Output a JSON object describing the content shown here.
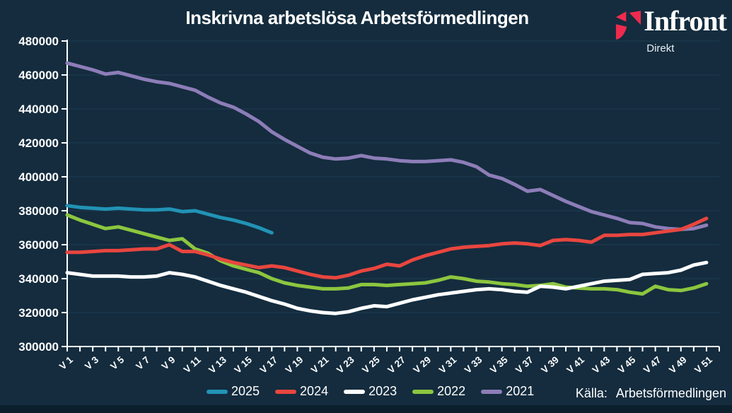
{
  "title": "Inskrivna arbetslösa Arbetsförmedlingen",
  "logo": {
    "name": "Infront",
    "sub": "Direkt",
    "mark_color": "#ee2b4e"
  },
  "source": {
    "label": "Källa:",
    "value": "Arbetsförmedlingen"
  },
  "colors": {
    "background": "#142c3e",
    "bottom_strip": "#0b1f2d",
    "grid": "#1e3c52",
    "axis": "#ffffff",
    "text": "#ffffff"
  },
  "chart_data": {
    "type": "line",
    "title": "Inskrivna arbetslösa Arbetsförmedlingen",
    "x_unit": "week",
    "weeks": 52,
    "x_labels": [
      "V 1",
      "V 3",
      "V 5",
      "V 7",
      "V 9",
      "V 11",
      "V 13",
      "V 15",
      "V 17",
      "V 19",
      "V 21",
      "V 23",
      "V 25",
      "V 27",
      "V 29",
      "V 31",
      "V 33",
      "V 35",
      "V 37",
      "V 39",
      "V 41",
      "V 43",
      "V 45",
      "V 47",
      "V 49",
      "V 51"
    ],
    "ylim": [
      300000,
      480000
    ],
    "y_tick_step": 20000,
    "y_tick_labels": [
      "300000",
      "320000",
      "340000",
      "360000",
      "380000",
      "400000",
      "420000",
      "440000",
      "460000",
      "480000"
    ],
    "grid": true,
    "legend_position": "bottom",
    "series": [
      {
        "name": "2021",
        "color": "#8d7db8",
        "start_week": 1,
        "values": [
          467000,
          465000,
          463000,
          460500,
          461500,
          459500,
          457500,
          456000,
          455000,
          453000,
          451000,
          447000,
          443500,
          441000,
          437000,
          432500,
          426500,
          422000,
          418000,
          414000,
          411500,
          410500,
          411000,
          412500,
          411000,
          410500,
          409500,
          409000,
          409000,
          409500,
          410000,
          408500,
          406000,
          401000,
          399000,
          395500,
          391500,
          392500,
          389000,
          385500,
          382500,
          379500,
          377500,
          375500,
          373000,
          372500,
          370500,
          369500,
          369000,
          369500,
          371500
        ]
      },
      {
        "name": "2022",
        "color": "#8cc63f",
        "start_week": 1,
        "values": [
          377500,
          374500,
          372000,
          369500,
          370500,
          368500,
          366500,
          364500,
          362500,
          363500,
          357500,
          355000,
          350500,
          347500,
          345500,
          343500,
          340000,
          337500,
          336000,
          335000,
          334000,
          334000,
          334500,
          336500,
          336500,
          336000,
          336500,
          337000,
          337500,
          339000,
          341000,
          340000,
          338500,
          338000,
          337000,
          336500,
          335500,
          336000,
          337000,
          335000,
          334500,
          334000,
          334000,
          333500,
          332000,
          331000,
          335500,
          333500,
          333000,
          334500,
          337000
        ]
      },
      {
        "name": "2023",
        "color": "#ffffff",
        "start_week": 1,
        "values": [
          343500,
          342500,
          341500,
          341500,
          341500,
          341000,
          341000,
          341500,
          343500,
          342500,
          341000,
          338500,
          336000,
          334000,
          332000,
          329500,
          327000,
          325000,
          322500,
          321000,
          320000,
          319500,
          320500,
          322500,
          324000,
          323500,
          325500,
          327500,
          329000,
          330500,
          331500,
          332500,
          333500,
          334000,
          333500,
          332500,
          332000,
          335500,
          335000,
          334000,
          335500,
          337000,
          338500,
          339000,
          339500,
          342500,
          343000,
          343500,
          345000,
          348000,
          349500
        ]
      },
      {
        "name": "2024",
        "color": "#e8463f",
        "start_week": 1,
        "values": [
          355500,
          355500,
          356000,
          356500,
          356500,
          357000,
          357500,
          357500,
          360000,
          356000,
          356000,
          354000,
          351500,
          349500,
          348000,
          346500,
          347500,
          346500,
          344500,
          342500,
          341000,
          340500,
          342000,
          344500,
          346000,
          348500,
          347500,
          351000,
          353500,
          355500,
          357500,
          358500,
          359000,
          359500,
          360500,
          361000,
          360500,
          359500,
          362500,
          363000,
          362500,
          361500,
          365500,
          365500,
          366000,
          366000,
          367000,
          368000,
          369000,
          372000,
          375500
        ]
      },
      {
        "name": "2025",
        "color": "#2193b5",
        "start_week": 1,
        "values": [
          383000,
          382000,
          381500,
          381000,
          381500,
          381000,
          380500,
          380500,
          381000,
          379500,
          380000,
          378000,
          376000,
          374500,
          372500,
          370000,
          367000
        ]
      }
    ],
    "legend_order": [
      "2025",
      "2024",
      "2023",
      "2022",
      "2021"
    ]
  }
}
